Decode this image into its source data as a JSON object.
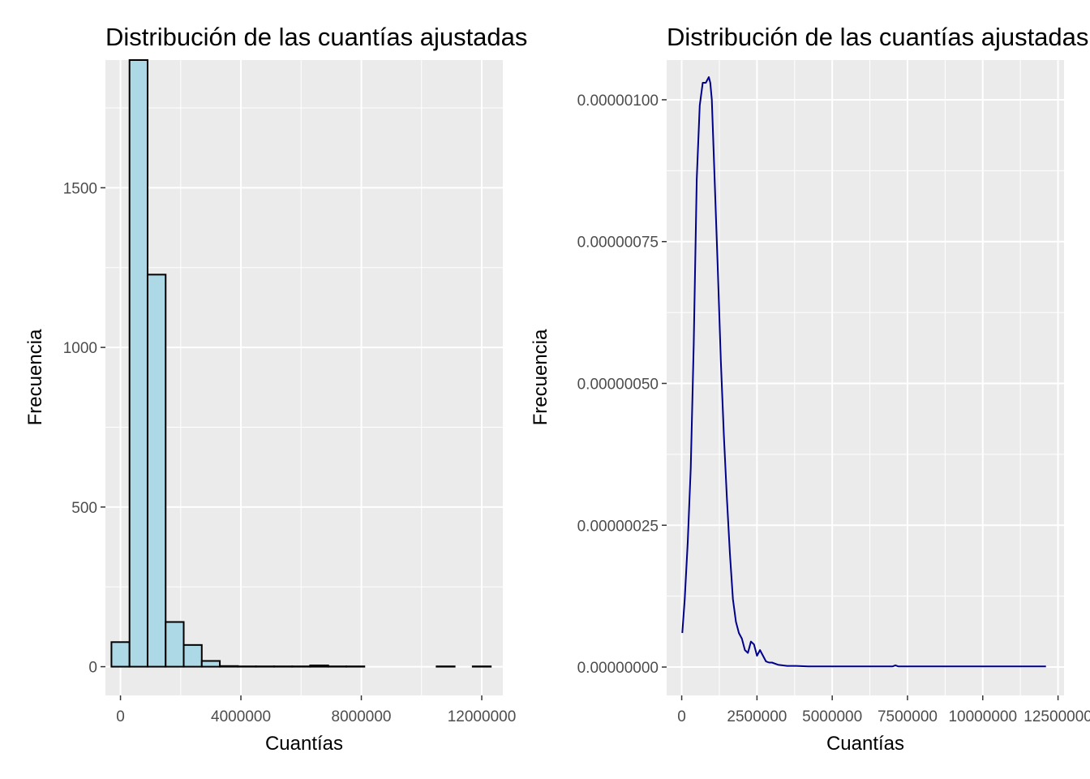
{
  "colors": {
    "panel_bg": "#ebebeb",
    "grid": "#ffffff",
    "bar_fill": "#add8e6",
    "bar_stroke": "#000000",
    "density_line": "#00008b",
    "tick_text": "#4d4d4d"
  },
  "chart_data": [
    {
      "type": "bar",
      "subtype": "histogram",
      "title": "Distribución de las cuantías ajustadas",
      "xlabel": "Cuantías",
      "ylabel": "Frecuencia",
      "xlim": [
        -500000,
        12700000
      ],
      "ylim": [
        -90,
        1900
      ],
      "bin_width": 600000,
      "bin_centers": [
        0,
        600000,
        1200000,
        1800000,
        2400000,
        3000000,
        3600000,
        4200000,
        4800000,
        5400000,
        6000000,
        6600000,
        7200000,
        7800000,
        8400000,
        9000000,
        9600000,
        10200000,
        10800000,
        11400000,
        12000000
      ],
      "values": [
        77,
        1900,
        1228,
        140,
        68,
        18,
        2,
        1,
        1,
        1,
        1,
        4,
        1,
        1,
        0,
        0,
        0,
        0,
        1,
        0,
        1
      ],
      "x_ticks": [
        0,
        4000000,
        8000000,
        12000000
      ],
      "x_tick_labels": [
        "0",
        "4000000",
        "8000000",
        "12000000"
      ],
      "y_ticks": [
        0,
        500,
        1000,
        1500
      ],
      "y_tick_labels": [
        "0",
        "500",
        "1000",
        "1500"
      ],
      "grid": true,
      "legend": "none"
    },
    {
      "type": "line",
      "subtype": "density",
      "title": "Distribución de las cuantías ajustadas",
      "xlabel": "Cuantías",
      "ylabel": "Frecuencia",
      "xlim": [
        -500000,
        12700000
      ],
      "ylim": [
        -5e-08,
        1.07e-06
      ],
      "x": [
        20000,
        100000,
        200000,
        300000,
        400000,
        500000,
        600000,
        700000,
        800000,
        900000,
        950000,
        1000000,
        1100000,
        1200000,
        1300000,
        1400000,
        1500000,
        1600000,
        1700000,
        1800000,
        1900000,
        2000000,
        2100000,
        2200000,
        2300000,
        2400000,
        2500000,
        2600000,
        2700000,
        2800000,
        2900000,
        3000000,
        3200000,
        3500000,
        3800000,
        4200000,
        5000000,
        6000000,
        7000000,
        7100000,
        7200000,
        7400000,
        8000000,
        9000000,
        10000000,
        11000000,
        12100000
      ],
      "y": [
        6e-08,
        1.2e-07,
        2.2e-07,
        3.5e-07,
        5.7e-07,
        8.6e-07,
        9.9e-07,
        1.03e-06,
        1.03e-06,
        1.04e-06,
        1.03e-06,
        1e-06,
        8.5e-07,
        7e-07,
        5.4e-07,
        4.1e-07,
        3e-07,
        2e-07,
        1.2e-07,
        8e-08,
        6e-08,
        5e-08,
        3e-08,
        2.5e-08,
        4.5e-08,
        4e-08,
        2e-08,
        3e-08,
        2e-08,
        1e-08,
        8e-09,
        8e-09,
        4e-09,
        2e-09,
        2e-09,
        1e-09,
        1e-09,
        1e-09,
        1e-09,
        3e-09,
        1e-09,
        1e-09,
        1e-09,
        1e-09,
        1e-09,
        1e-09,
        1e-09
      ],
      "x_ticks": [
        0,
        2500000,
        5000000,
        7500000,
        10000000,
        12500000
      ],
      "x_tick_labels": [
        "0",
        "2500000",
        "5000000",
        "7500000",
        "10000000",
        "12500000"
      ],
      "y_ticks": [
        0,
        2.5e-07,
        5e-07,
        7.5e-07,
        1e-06
      ],
      "y_tick_labels": [
        "0.00000000",
        "0.00000025",
        "0.00000050",
        "0.00000075",
        "0.00000100"
      ],
      "grid": true,
      "legend": "none"
    }
  ]
}
